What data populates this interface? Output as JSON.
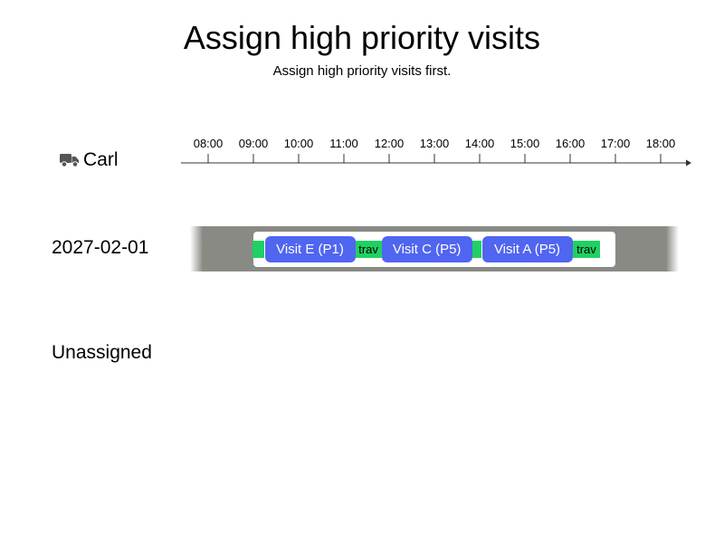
{
  "header": {
    "title": "Assign high priority visits",
    "subtitle": "Assign high priority visits first."
  },
  "vehicle": {
    "name": "Carl",
    "icon": "truck-icon",
    "icon_color": "#555555"
  },
  "timeline": {
    "ticks": [
      "08:00",
      "09:00",
      "10:00",
      "11:00",
      "12:00",
      "13:00",
      "14:00",
      "15:00",
      "16:00",
      "17:00",
      "18:00"
    ]
  },
  "route": {
    "date": "2027-02-01",
    "segments": [
      {
        "type": "travel",
        "label": "",
        "start": "08:59",
        "end": "09:15"
      },
      {
        "type": "visit",
        "label": "Visit E (P1)",
        "start": "09:15",
        "end": "11:15"
      },
      {
        "type": "travel",
        "label": "trav",
        "start": "11:15",
        "end": "11:50"
      },
      {
        "type": "visit",
        "label": "Visit C (P5)",
        "start": "11:50",
        "end": "13:50"
      },
      {
        "type": "travel",
        "label": "",
        "start": "13:50",
        "end": "14:03"
      },
      {
        "type": "visit",
        "label": "Visit A (P5)",
        "start": "14:03",
        "end": "16:03"
      },
      {
        "type": "travel",
        "label": "trav",
        "start": "16:03",
        "end": "16:40"
      }
    ]
  },
  "unassigned": {
    "label": "Unassigned"
  },
  "colors": {
    "visit": "#5065f0",
    "travel": "#1fd162",
    "band": "#8a8a85"
  }
}
